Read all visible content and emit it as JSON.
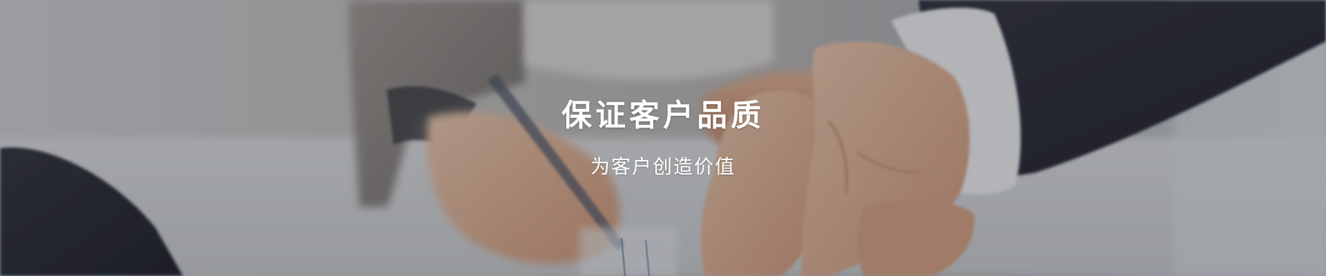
{
  "banner": {
    "title": "保证客户品质",
    "subtitle": "为客户创造价值",
    "background_image": "business-handshake-photo",
    "overlay_color": "#23262d",
    "text_color": "#ffffff"
  }
}
